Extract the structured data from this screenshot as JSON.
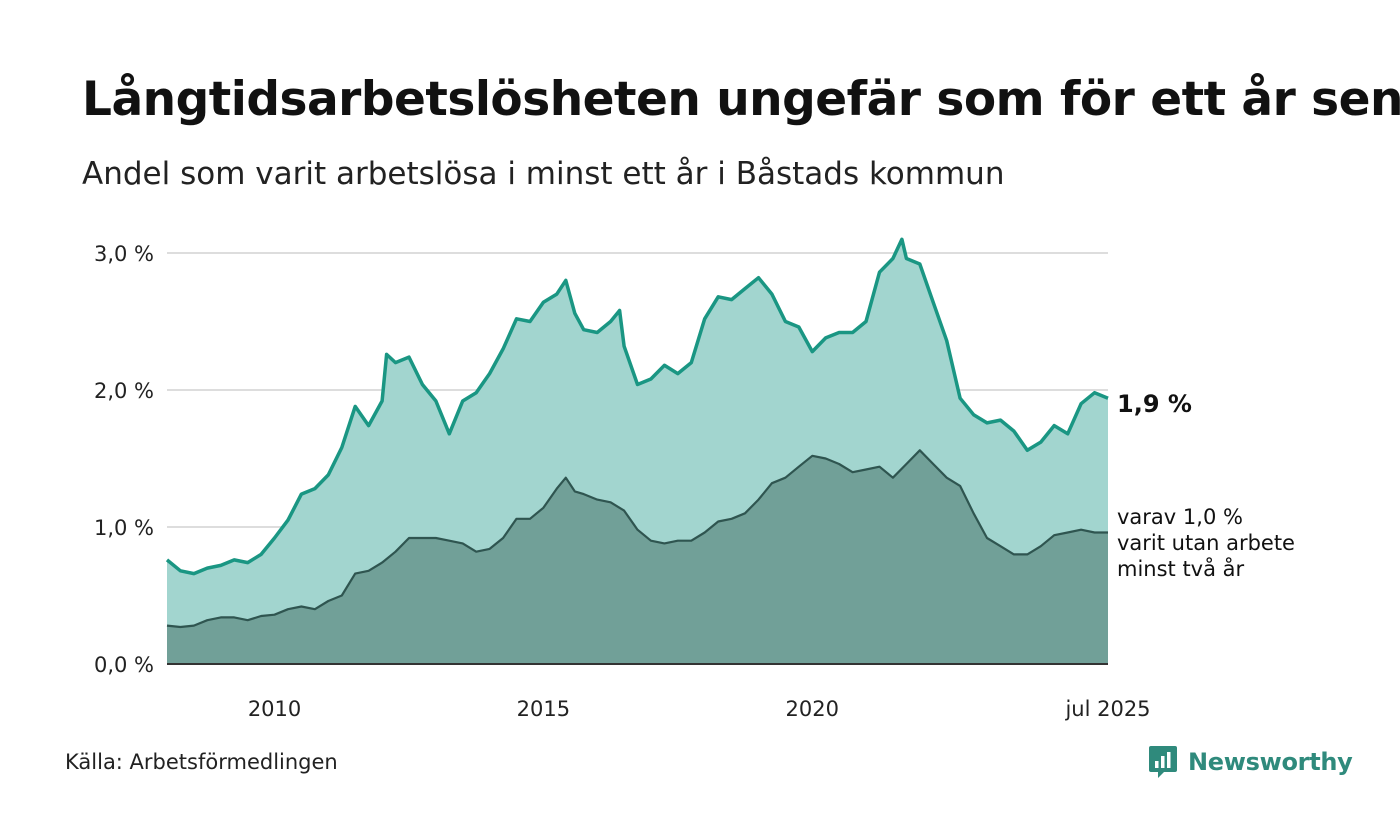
{
  "header": {
    "title": "Långtidsarbetslösheten ungefär som för ett år sen",
    "subtitle": "Andel som varit arbetslösa i minst ett år i Båstads kommun"
  },
  "footer": {
    "source": "Källa: Arbetsförmedlingen",
    "brand": "Newsworthy"
  },
  "colors": {
    "total_line": "#1a9683",
    "total_fill": "#a2d5cf",
    "twoyear_line": "#2f5550",
    "twoyear_fill": "#71a098",
    "grid": "#dddddd",
    "brand": "#2f8a7c"
  },
  "chart_data": {
    "type": "area",
    "x_range": [
      "2008-01",
      "2025-07"
    ],
    "ylim": [
      0,
      3.0
    ],
    "y_ticks": [
      {
        "value": 0,
        "label": "0,0 %"
      },
      {
        "value": 1,
        "label": "1,0 %"
      },
      {
        "value": 2,
        "label": "2,0 %"
      },
      {
        "value": 3,
        "label": "3,0 %"
      }
    ],
    "x_ticks": [
      {
        "date": "2010-01",
        "label": "2010"
      },
      {
        "date": "2015-01",
        "label": "2015"
      },
      {
        "date": "2020-01",
        "label": "2020"
      },
      {
        "date": "2025-07",
        "label": "jul 2025"
      }
    ],
    "grid": "horizontal",
    "end_label": "1,9 %",
    "annotation": [
      "varav 1,0 %",
      "varit utan arbete",
      "minst två år"
    ],
    "series": [
      {
        "key": "total",
        "points": [
          [
            "2008-01",
            0.76
          ],
          [
            "2008-04",
            0.68
          ],
          [
            "2008-07",
            0.66
          ],
          [
            "2008-10",
            0.7
          ],
          [
            "2009-01",
            0.72
          ],
          [
            "2009-04",
            0.76
          ],
          [
            "2009-07",
            0.74
          ],
          [
            "2009-10",
            0.8
          ],
          [
            "2010-01",
            0.92
          ],
          [
            "2010-04",
            1.05
          ],
          [
            "2010-07",
            1.24
          ],
          [
            "2010-10",
            1.28
          ],
          [
            "2011-01",
            1.38
          ],
          [
            "2011-04",
            1.58
          ],
          [
            "2011-07",
            1.88
          ],
          [
            "2011-10",
            1.74
          ],
          [
            "2012-01",
            1.92
          ],
          [
            "2012-02",
            2.26
          ],
          [
            "2012-04",
            2.2
          ],
          [
            "2012-07",
            2.24
          ],
          [
            "2012-10",
            2.04
          ],
          [
            "2013-01",
            1.92
          ],
          [
            "2013-04",
            1.68
          ],
          [
            "2013-07",
            1.92
          ],
          [
            "2013-10",
            1.98
          ],
          [
            "2014-01",
            2.12
          ],
          [
            "2014-04",
            2.3
          ],
          [
            "2014-07",
            2.52
          ],
          [
            "2014-10",
            2.5
          ],
          [
            "2015-01",
            2.64
          ],
          [
            "2015-04",
            2.7
          ],
          [
            "2015-06",
            2.8
          ],
          [
            "2015-08",
            2.56
          ],
          [
            "2015-10",
            2.44
          ],
          [
            "2016-01",
            2.42
          ],
          [
            "2016-04",
            2.5
          ],
          [
            "2016-06",
            2.58
          ],
          [
            "2016-07",
            2.32
          ],
          [
            "2016-10",
            2.04
          ],
          [
            "2017-01",
            2.08
          ],
          [
            "2017-04",
            2.18
          ],
          [
            "2017-07",
            2.12
          ],
          [
            "2017-10",
            2.2
          ],
          [
            "2018-01",
            2.52
          ],
          [
            "2018-04",
            2.68
          ],
          [
            "2018-07",
            2.66
          ],
          [
            "2018-10",
            2.74
          ],
          [
            "2019-01",
            2.82
          ],
          [
            "2019-04",
            2.7
          ],
          [
            "2019-07",
            2.5
          ],
          [
            "2019-10",
            2.46
          ],
          [
            "2020-01",
            2.28
          ],
          [
            "2020-04",
            2.38
          ],
          [
            "2020-07",
            2.42
          ],
          [
            "2020-10",
            2.42
          ],
          [
            "2021-01",
            2.5
          ],
          [
            "2021-04",
            2.86
          ],
          [
            "2021-07",
            2.96
          ],
          [
            "2021-09",
            3.1
          ],
          [
            "2021-10",
            2.96
          ],
          [
            "2022-01",
            2.92
          ],
          [
            "2022-04",
            2.64
          ],
          [
            "2022-07",
            2.36
          ],
          [
            "2022-10",
            1.94
          ],
          [
            "2023-01",
            1.82
          ],
          [
            "2023-04",
            1.76
          ],
          [
            "2023-07",
            1.78
          ],
          [
            "2023-10",
            1.7
          ],
          [
            "2024-01",
            1.56
          ],
          [
            "2024-04",
            1.62
          ],
          [
            "2024-07",
            1.74
          ],
          [
            "2024-10",
            1.68
          ],
          [
            "2025-01",
            1.9
          ],
          [
            "2025-04",
            1.98
          ],
          [
            "2025-07",
            1.94
          ]
        ]
      },
      {
        "key": "two_years",
        "points": [
          [
            "2008-01",
            0.28
          ],
          [
            "2008-04",
            0.27
          ],
          [
            "2008-07",
            0.28
          ],
          [
            "2008-10",
            0.32
          ],
          [
            "2009-01",
            0.34
          ],
          [
            "2009-04",
            0.34
          ],
          [
            "2009-07",
            0.32
          ],
          [
            "2009-10",
            0.35
          ],
          [
            "2010-01",
            0.36
          ],
          [
            "2010-04",
            0.4
          ],
          [
            "2010-07",
            0.42
          ],
          [
            "2010-10",
            0.4
          ],
          [
            "2011-01",
            0.46
          ],
          [
            "2011-04",
            0.5
          ],
          [
            "2011-07",
            0.66
          ],
          [
            "2011-10",
            0.68
          ],
          [
            "2012-01",
            0.74
          ],
          [
            "2012-04",
            0.82
          ],
          [
            "2012-07",
            0.92
          ],
          [
            "2012-10",
            0.92
          ],
          [
            "2013-01",
            0.92
          ],
          [
            "2013-04",
            0.9
          ],
          [
            "2013-07",
            0.88
          ],
          [
            "2013-10",
            0.82
          ],
          [
            "2014-01",
            0.84
          ],
          [
            "2014-04",
            0.92
          ],
          [
            "2014-07",
            1.06
          ],
          [
            "2014-10",
            1.06
          ],
          [
            "2015-01",
            1.14
          ],
          [
            "2015-04",
            1.28
          ],
          [
            "2015-06",
            1.36
          ],
          [
            "2015-08",
            1.26
          ],
          [
            "2015-10",
            1.24
          ],
          [
            "2016-01",
            1.2
          ],
          [
            "2016-04",
            1.18
          ],
          [
            "2016-07",
            1.12
          ],
          [
            "2016-10",
            0.98
          ],
          [
            "2017-01",
            0.9
          ],
          [
            "2017-04",
            0.88
          ],
          [
            "2017-07",
            0.9
          ],
          [
            "2017-10",
            0.9
          ],
          [
            "2018-01",
            0.96
          ],
          [
            "2018-04",
            1.04
          ],
          [
            "2018-07",
            1.06
          ],
          [
            "2018-10",
            1.1
          ],
          [
            "2019-01",
            1.2
          ],
          [
            "2019-04",
            1.32
          ],
          [
            "2019-07",
            1.36
          ],
          [
            "2019-10",
            1.44
          ],
          [
            "2020-01",
            1.52
          ],
          [
            "2020-04",
            1.5
          ],
          [
            "2020-07",
            1.46
          ],
          [
            "2020-10",
            1.4
          ],
          [
            "2021-01",
            1.42
          ],
          [
            "2021-04",
            1.44
          ],
          [
            "2021-07",
            1.36
          ],
          [
            "2021-10",
            1.46
          ],
          [
            "2022-01",
            1.56
          ],
          [
            "2022-04",
            1.46
          ],
          [
            "2022-07",
            1.36
          ],
          [
            "2022-10",
            1.3
          ],
          [
            "2023-01",
            1.1
          ],
          [
            "2023-04",
            0.92
          ],
          [
            "2023-07",
            0.86
          ],
          [
            "2023-10",
            0.8
          ],
          [
            "2024-01",
            0.8
          ],
          [
            "2024-04",
            0.86
          ],
          [
            "2024-07",
            0.94
          ],
          [
            "2024-10",
            0.96
          ],
          [
            "2025-01",
            0.98
          ],
          [
            "2025-04",
            0.96
          ],
          [
            "2025-07",
            0.96
          ]
        ]
      }
    ]
  }
}
